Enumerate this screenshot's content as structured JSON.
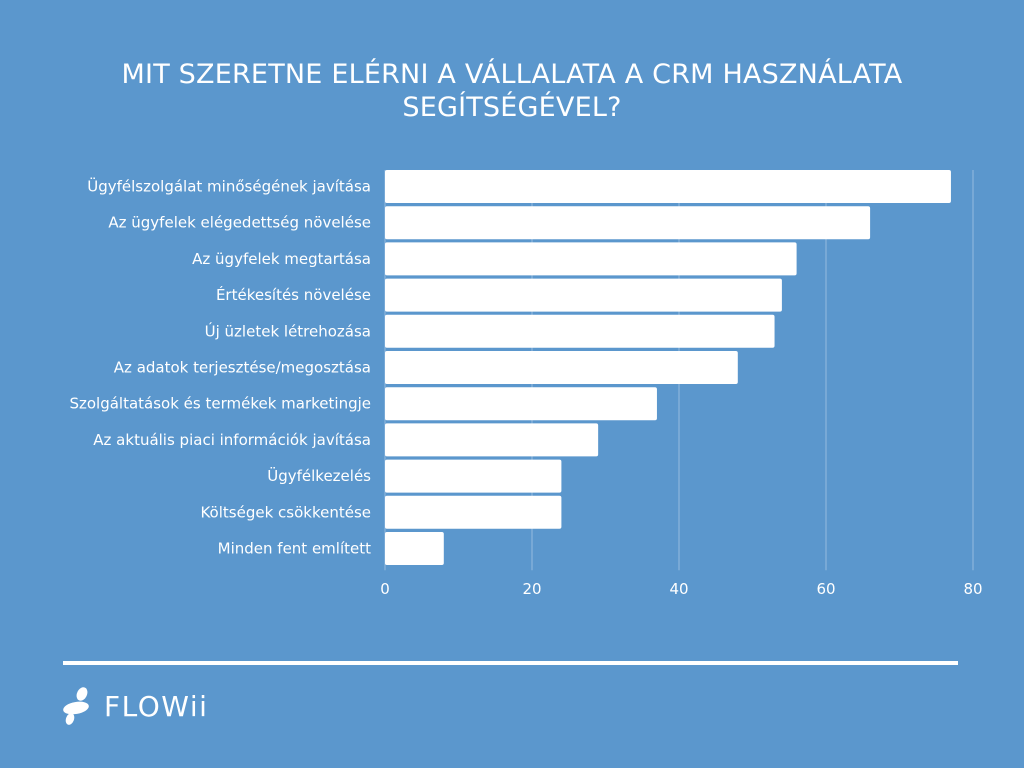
{
  "chart_data": {
    "type": "bar",
    "orientation": "horizontal",
    "title": "MIT SZERETNE ELÉRNI A VÁLLALATA A CRM HASZNÁLATA SEGÍTSÉGÉVEL?",
    "title_lines": [
      "MIT SZERETNE ELÉRNI A VÁLLALATA A CRM HASZNÁLATA",
      "SEGÍTSÉGÉVEL?"
    ],
    "categories": [
      "Ügyfélszolgálat minőségének javítása",
      "Az ügyfelek elégedettség növelése",
      "Az ügyfelek megtartása",
      "Értékesítés növelése",
      "Új üzletek létrehozása",
      "Az adatok terjesztése/megosztása",
      "Szolgáltatások és termékek marketingje",
      "Az aktuális piaci információk javítása",
      "Ügyfélkezelés",
      "Költségek csökkentése",
      "Minden fent említett"
    ],
    "values": [
      77,
      66,
      56,
      54,
      53,
      48,
      37,
      29,
      24,
      24,
      8
    ],
    "xlim": [
      0,
      80
    ],
    "xticks": [
      "0",
      "20",
      "40",
      "60",
      "80"
    ],
    "grid": true,
    "bar_color": "#ffffff",
    "background_color": "#5b97cd"
  },
  "brand": {
    "name": "FLOWii"
  }
}
